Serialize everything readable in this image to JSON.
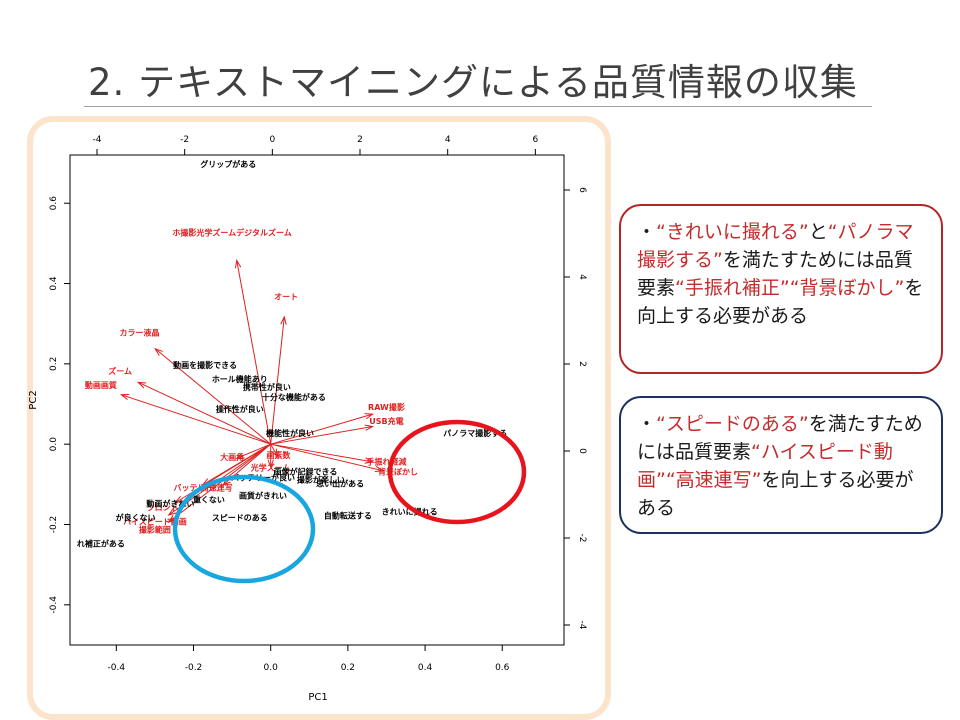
{
  "slide": {
    "title": "2. テキストマイニングによる品質情報の収集"
  },
  "chart_data": {
    "type": "biplot",
    "xlabel": "PC1",
    "ylabel": "PC2",
    "xlim": [
      -0.52,
      0.76
    ],
    "ylim": [
      -0.5,
      0.72
    ],
    "bottom_ticks": [
      "-0.4",
      "-0.2",
      "0.0",
      "0.2",
      "0.4",
      "0.6"
    ],
    "left_ticks": [
      "-0.4",
      "-0.2",
      "0.0",
      "0.2",
      "0.4",
      "0.6"
    ],
    "top_ticks": [
      "-4",
      "-2",
      "0",
      "2",
      "4",
      "6"
    ],
    "right_ticks": [
      "-4",
      "-2",
      "0",
      "2",
      "4",
      "6"
    ],
    "points": [
      {
        "label": "グリップがある",
        "x": -0.11,
        "y": 0.69
      },
      {
        "label": "動画を撮影できる",
        "x": -0.17,
        "y": 0.19
      },
      {
        "label": "ホール機能あり",
        "x": -0.08,
        "y": 0.155
      },
      {
        "label": "携帯性が良い",
        "x": -0.01,
        "y": 0.135
      },
      {
        "label": "十分な機能がある",
        "x": 0.06,
        "y": 0.11
      },
      {
        "label": "操作性が良い",
        "x": -0.08,
        "y": 0.08
      },
      {
        "label": "機能性が良い",
        "x": 0.05,
        "y": 0.02
      },
      {
        "label": "バッテリーが良い",
        "x": -0.02,
        "y": -0.09
      },
      {
        "label": "画像が記録できる",
        "x": 0.09,
        "y": -0.075
      },
      {
        "label": "撮影が楽しい",
        "x": 0.13,
        "y": -0.095
      },
      {
        "label": "思い出がある",
        "x": 0.18,
        "y": -0.105
      },
      {
        "label": "画質がきれい",
        "x": -0.02,
        "y": -0.135
      },
      {
        "label": "重くない",
        "x": -0.16,
        "y": -0.145
      },
      {
        "label": "スピードのある",
        "x": -0.08,
        "y": -0.19
      },
      {
        "label": "自動転送する",
        "x": 0.2,
        "y": -0.185
      },
      {
        "label": "きれいに撮れる",
        "x": 0.36,
        "y": -0.175
      },
      {
        "label": "パノラマ撮影する",
        "x": 0.53,
        "y": 0.02
      },
      {
        "label": "動画がきれい",
        "x": -0.26,
        "y": -0.155
      },
      {
        "label": "が良くない",
        "x": -0.35,
        "y": -0.19
      },
      {
        "label": "れ補正がある",
        "x": -0.44,
        "y": -0.255
      }
    ],
    "loadings": [
      {
        "label": "ホ撮影光学ズームデジタルズーム",
        "x": -0.1,
        "y": 0.52
      },
      {
        "label": "オート",
        "x": 0.04,
        "y": 0.36
      },
      {
        "label": "カラー液晶",
        "x": -0.34,
        "y": 0.27
      },
      {
        "label": "ズーム",
        "x": -0.39,
        "y": 0.175
      },
      {
        "label": "動画画質",
        "x": -0.44,
        "y": 0.14
      },
      {
        "label": "RAW撮影",
        "x": 0.3,
        "y": 0.085
      },
      {
        "label": "USB充電",
        "x": 0.3,
        "y": 0.05
      },
      {
        "label": "手振れ軽減",
        "x": 0.3,
        "y": -0.05
      },
      {
        "label": "背景ぼかし",
        "x": 0.33,
        "y": -0.075
      },
      {
        "label": "大画角",
        "x": -0.1,
        "y": -0.04
      },
      {
        "label": "画素数",
        "x": 0.02,
        "y": -0.035
      },
      {
        "label": "光学ズーム",
        "x": 0.0,
        "y": -0.065
      },
      {
        "label": "バッテリー",
        "x": -0.2,
        "y": -0.115
      },
      {
        "label": "高速連写",
        "x": -0.14,
        "y": -0.115
      },
      {
        "label": "フロント",
        "x": -0.28,
        "y": -0.165
      },
      {
        "label": "ハイスピード動画",
        "x": -0.3,
        "y": -0.2
      },
      {
        "label": "撮影範囲",
        "x": -0.3,
        "y": -0.22
      }
    ],
    "highlight_circles": [
      {
        "color": "#e8141c"
      },
      {
        "color": "#19a6e0"
      }
    ]
  },
  "callouts": {
    "quality": {
      "bullet": "・",
      "q1": "“きれいに撮れる”",
      "and1": "と",
      "q2": "“パノラマ撮影する”",
      "mid": "を満たすためには品質要素",
      "q3": "“手振れ補正”",
      "q4": "“背景ぼかし”",
      "end": "を向上する必要がある"
    },
    "speed": {
      "bullet": "・",
      "q1": "“スピードのある”",
      "mid": "を満たすためには品質要素",
      "q2": "“ハイスピード動画”",
      "q3": "“高速連写”",
      "end": "を向上する必要がある"
    }
  },
  "colors": {
    "loading": "#e02020",
    "callout_red_border": "#b42525",
    "callout_navy_border": "#1d3060",
    "frame": "#fbe3cc"
  }
}
